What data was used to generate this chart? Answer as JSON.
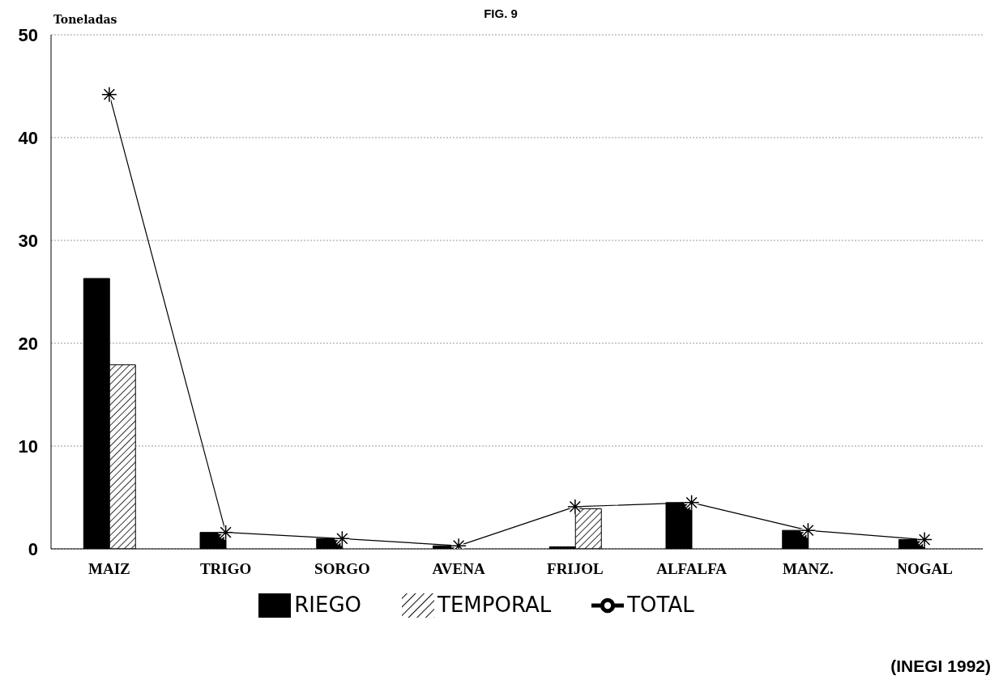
{
  "chart_data": {
    "type": "bar",
    "title": "FIG. 9",
    "ylabel": "Toneladas",
    "categories": [
      "MAIZ",
      "TRIGO",
      "SORGO",
      "AVENA",
      "FRIJOL",
      "ALFALFA",
      "MANZ.",
      "NOGAL"
    ],
    "series": [
      {
        "name": "RIEGO",
        "color": "#000000",
        "values": [
          26.3,
          1.6,
          1.0,
          0.3,
          0.2,
          4.5,
          1.8,
          0.9
        ]
      },
      {
        "name": "TEMPORAL",
        "color": "#000000",
        "values": [
          17.9,
          0,
          0,
          0,
          3.9,
          0,
          0,
          0
        ]
      },
      {
        "name": "TOTAL",
        "type": "line",
        "color": "#000000",
        "marker": "cross",
        "values": [
          44.2,
          1.6,
          1.0,
          0.3,
          4.1,
          4.5,
          1.8,
          0.9
        ]
      }
    ],
    "ylim": [
      0,
      50
    ],
    "yticks": [
      0,
      10,
      20,
      30,
      40,
      50
    ],
    "grid": "y",
    "legend": "bottom",
    "annotations": [
      "(INEGI 1992)"
    ]
  }
}
